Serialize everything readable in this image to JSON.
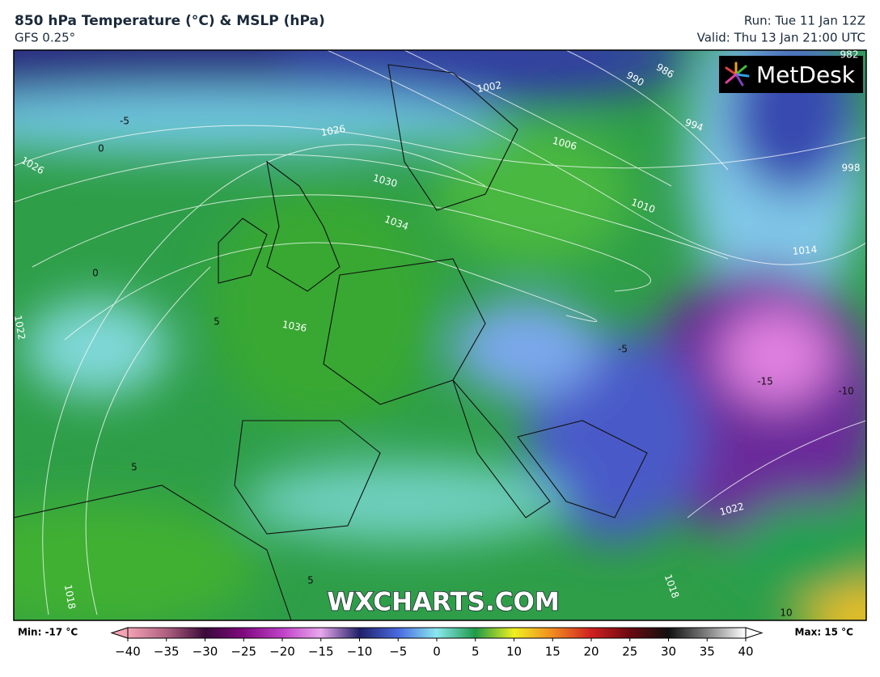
{
  "header": {
    "title": "850 hPa Temperature (°C) & MSLP (hPa)",
    "model": "GFS 0.25°",
    "run": "Run: Tue 11 Jan 12Z",
    "valid": "Valid: Thu 13 Jan 21:00 UTC"
  },
  "logo": "MetDesk",
  "watermark": "WXCHARTS.COM",
  "map": {
    "isobar_labels": [
      "1026",
      "1030",
      "1034",
      "1036",
      "1022",
      "1018",
      "1014",
      "1010",
      "1006",
      "1002",
      "998",
      "994",
      "990",
      "986",
      "982",
      "1022",
      "1026",
      "1018"
    ],
    "temperature_labels": [
      "-5",
      "0",
      "0",
      "5",
      "5",
      "-15",
      "-10",
      "10",
      "-5",
      "5"
    ]
  },
  "colorbar": {
    "min_label": "Min: -17 °C",
    "max_label": "Max: 15 °C",
    "range": [
      -40,
      40
    ],
    "ticks": [
      {
        "value": -40,
        "label": "−40"
      },
      {
        "value": -35,
        "label": "−35"
      },
      {
        "value": -30,
        "label": "−30"
      },
      {
        "value": -25,
        "label": "−25"
      },
      {
        "value": -20,
        "label": "−20"
      },
      {
        "value": -15,
        "label": "−15"
      },
      {
        "value": -10,
        "label": "−10"
      },
      {
        "value": -5,
        "label": "−5"
      },
      0,
      5,
      10,
      15,
      20,
      25,
      30,
      35,
      40
    ],
    "colors": [
      "#f4a3b4",
      "#b06080",
      "#3a0a3a",
      "#800a80",
      "#c040c8",
      "#e8a8ec",
      "#202068",
      "#4a6ae0",
      "#8ae8ee",
      "#1f9a48",
      "#f0f020",
      "#f08a20",
      "#d02020",
      "#6a0a10",
      "#101010",
      "#808080",
      "#ffffff"
    ]
  }
}
